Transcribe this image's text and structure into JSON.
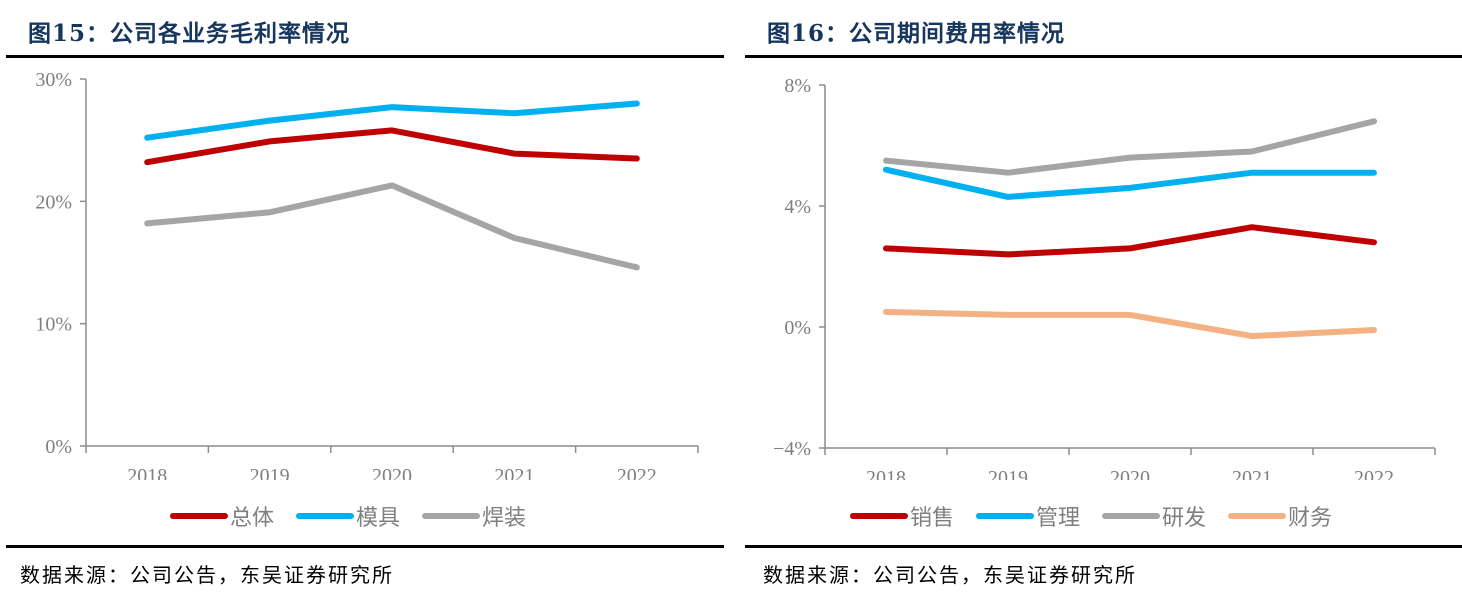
{
  "figures": [
    {
      "title": "图15：公司各业务毛利率情况",
      "source": "数据来源：公司公告，东吴证券研究所"
    },
    {
      "title": "图16：公司期间费用率情况",
      "source": "数据来源：公司公告，东吴证券研究所"
    }
  ],
  "chart_data": [
    {
      "type": "line",
      "title": "图15：公司各业务毛利率情况",
      "xlabel": "",
      "ylabel": "",
      "categories": [
        "2018",
        "2019",
        "2020",
        "2021",
        "2022"
      ],
      "ylim": [
        0,
        30
      ],
      "yticks": [
        0,
        10,
        20,
        30
      ],
      "ytick_labels": [
        "0%",
        "10%",
        "20%",
        "30%"
      ],
      "grid": false,
      "legend_position": "bottom",
      "series": [
        {
          "name": "总体",
          "color": "#c00000",
          "values": [
            23.2,
            24.9,
            25.8,
            23.9,
            23.5
          ]
        },
        {
          "name": "模具",
          "color": "#00b0f0",
          "values": [
            25.2,
            26.6,
            27.7,
            27.2,
            28.0
          ]
        },
        {
          "name": "焊装",
          "color": "#a5a5a5",
          "values": [
            18.2,
            19.1,
            21.3,
            17.0,
            14.6
          ]
        }
      ]
    },
    {
      "type": "line",
      "title": "图16：公司期间费用率情况",
      "xlabel": "",
      "ylabel": "",
      "categories": [
        "2018",
        "2019",
        "2020",
        "2021",
        "2022"
      ],
      "ylim": [
        -4,
        8
      ],
      "yticks": [
        -4,
        0,
        4,
        8
      ],
      "ytick_labels": [
        "−4%",
        "0%",
        "4%",
        "8%"
      ],
      "grid": false,
      "legend_position": "bottom",
      "series": [
        {
          "name": "销售",
          "color": "#c00000",
          "values": [
            2.6,
            2.4,
            2.6,
            3.3,
            2.8
          ]
        },
        {
          "name": "管理",
          "color": "#00b0f0",
          "values": [
            5.2,
            4.3,
            4.6,
            5.1,
            5.1
          ]
        },
        {
          "name": "研发",
          "color": "#a5a5a5",
          "values": [
            5.5,
            5.1,
            5.6,
            5.8,
            6.8
          ]
        },
        {
          "name": "财务",
          "color": "#f4b183",
          "values": [
            0.5,
            0.4,
            0.4,
            -0.3,
            -0.1
          ]
        }
      ]
    }
  ]
}
